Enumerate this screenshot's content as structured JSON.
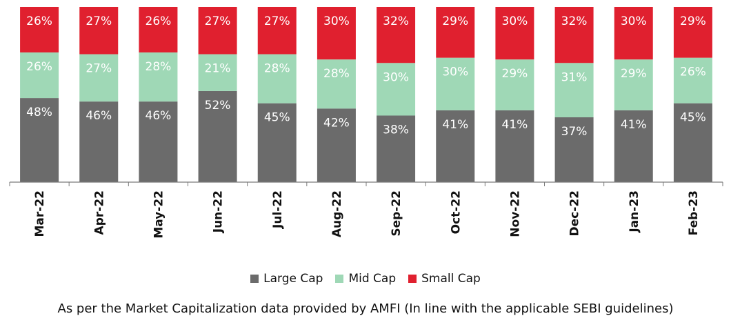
{
  "chart_data": {
    "type": "bar",
    "stacked": true,
    "normalized": true,
    "categories": [
      "Mar-22",
      "Apr-22",
      "May-22",
      "Jun-22",
      "Jul-22",
      "Aug-22",
      "Sep-22",
      "Oct-22",
      "Nov-22",
      "Dec-22",
      "Jan-23",
      "Feb-23"
    ],
    "series": [
      {
        "name": "Large Cap",
        "color": "#6b6b6b",
        "values": [
          48,
          46,
          46,
          52,
          45,
          42,
          38,
          41,
          41,
          37,
          41,
          45
        ]
      },
      {
        "name": "Mid Cap",
        "color": "#9fd8b6",
        "values": [
          26,
          27,
          28,
          21,
          28,
          28,
          30,
          30,
          29,
          31,
          29,
          26
        ]
      },
      {
        "name": "Small Cap",
        "color": "#e0202f",
        "values": [
          26,
          27,
          26,
          27,
          27,
          30,
          32,
          29,
          30,
          32,
          30,
          29
        ]
      }
    ],
    "label_suffix": "%",
    "legend": "bottom",
    "grid": false
  },
  "footnote": "As per the Market Capitalization data provided by AMFI (In line with the applicable SEBI guidelines)"
}
